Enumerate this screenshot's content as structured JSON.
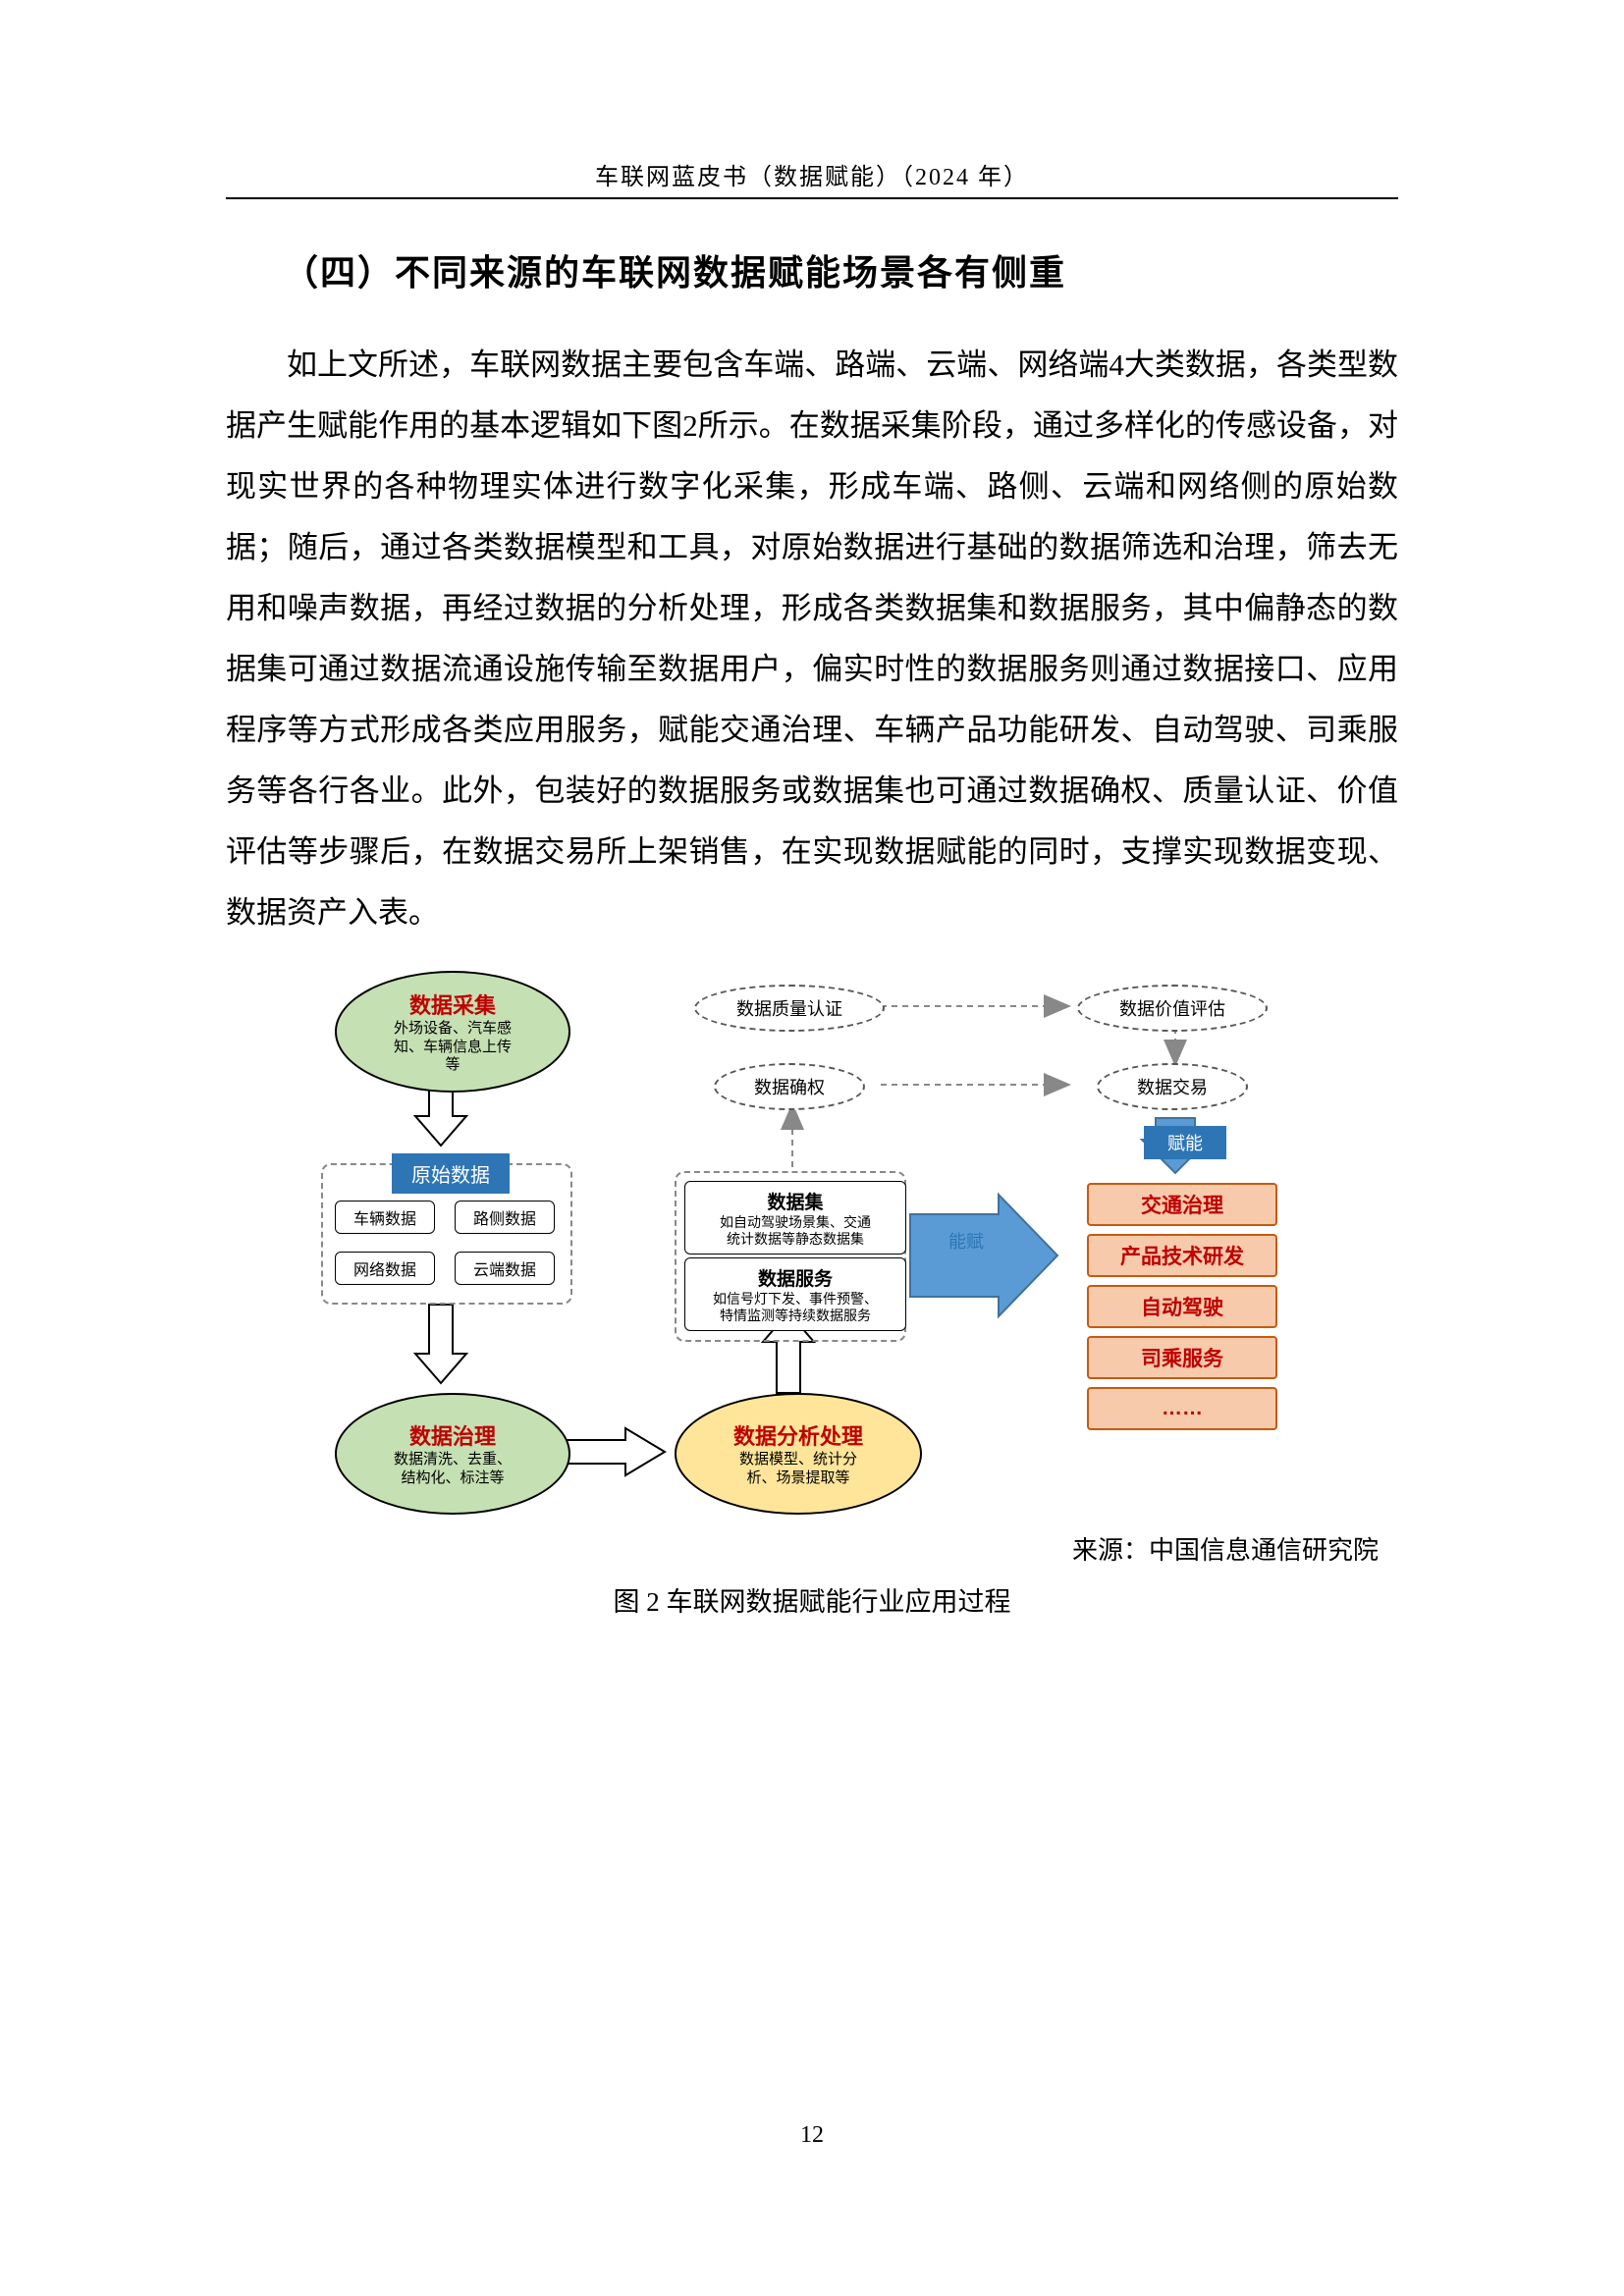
{
  "header": {
    "running": "车联网蓝皮书（数据赋能）（2024 年）"
  },
  "heading": "（四）不同来源的车联网数据赋能场景各有侧重",
  "para": "如上文所述，车联网数据主要包含车端、路端、云端、网络端4大类数据，各类型数据产生赋能作用的基本逻辑如下图2所示。在数据采集阶段，通过多样化的传感设备，对现实世界的各种物理实体进行数字化采集，形成车端、路侧、云端和网络侧的原始数据；随后，通过各类数据模型和工具，对原始数据进行基础的数据筛选和治理，筛去无用和噪声数据，再经过数据的分析处理，形成各类数据集和数据服务，其中偏静态的数据集可通过数据流通设施传输至数据用户，偏实时性的数据服务则通过数据接口、应用程序等方式形成各类应用服务，赋能交通治理、车辆产品功能研发、自动驾驶、司乘服务等各行各业。此外，包装好的数据服务或数据集也可通过数据确权、质量认证、价值评估等步骤后，在数据交易所上架销售，在实现数据赋能的同时，支撑实现数据变现、数据资产入表。",
  "diagram": {
    "ellipses": {
      "collect": {
        "title": "数据采集",
        "sub": "外场设备、汽车感\n知、车辆信息上传\n等",
        "fill": "#c5e0b3"
      },
      "govern": {
        "title": "数据治理",
        "sub": "数据清洗、去重、\n结构化、标注等",
        "fill": "#c5e0b3"
      },
      "analyze": {
        "title": "数据分析处理",
        "sub": "数据模型、统计分\n析、场景提取等",
        "fill": "#ffe599"
      }
    },
    "dashEllipses": {
      "quality": "数据质量认证",
      "value": "数据价值评估",
      "right": "数据确权",
      "trade": "数据交易"
    },
    "rawLabel": "原始数据",
    "rawBoxes": [
      "车辆数据",
      "路侧数据",
      "网络数据",
      "云端数据"
    ],
    "midBoxes": {
      "set": {
        "t": "数据集",
        "s": "如自动驾驶场景集、交通\n统计数据等静态数据集"
      },
      "service": {
        "t": "数据服务",
        "s": "如信号灯下发、事件预警、\n特情监测等持续数据服务"
      }
    },
    "orange": [
      "交通治理",
      "产品技术研发",
      "自动驾驶",
      "司乘服务",
      "……"
    ],
    "blueLabel": "赋能",
    "arrowLabel": "赋\n能",
    "colors": {
      "green": "#c5e0b3",
      "yellow": "#ffe599",
      "orange_fill": "#f7caac",
      "orange_border": "#c55a11",
      "red_text": "#c00000",
      "blue": "#2e75b6",
      "blue_arrow": "#5b9bd5"
    }
  },
  "source": "来源：中国信息通信研究院",
  "caption": "图 2  车联网数据赋能行业应用过程",
  "pageNumber": "12"
}
